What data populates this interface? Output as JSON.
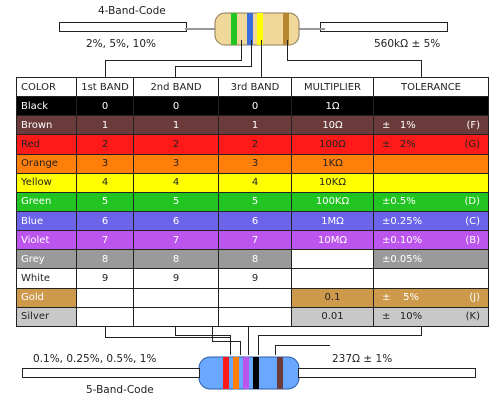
{
  "top": {
    "title": "4-Band-Code",
    "left_note": "2%, 5%, 10%",
    "right_note": "560kΩ ± 5%"
  },
  "bottom": {
    "title": "5-Band-Code",
    "left_note": "0.1%, 0.25%, 0.5%, 1%",
    "right_note": "237Ω ± 1%"
  },
  "table": {
    "headers": [
      "COLOR",
      "1st BAND",
      "2nd BAND",
      "3rd BAND",
      "MULTIPLIER",
      "TOLERANCE"
    ],
    "rows": [
      {
        "name": "Black",
        "b1": "0",
        "b2": "0",
        "b3": "0",
        "mult": "1Ω",
        "tol_val": "",
        "tol_code": "",
        "bg": "#000000",
        "fg": "#ffffff",
        "mult_bg": "#000000",
        "mult_fg": "#ffffff",
        "tol_bg": "#000000"
      },
      {
        "name": "Brown",
        "b1": "1",
        "b2": "1",
        "b3": "1",
        "mult": "10Ω",
        "tol_val": "±   1%",
        "tol_code": "(F)",
        "bg": "#6b3a3a",
        "fg": "#ffffff",
        "mult_bg": "#6b3a3a",
        "mult_fg": "#ffffff",
        "tol_bg": "#6b3a3a"
      },
      {
        "name": "Red",
        "b1": "2",
        "b2": "2",
        "b3": "2",
        "mult": "100Ω",
        "tol_val": "±   2%",
        "tol_code": "(G)",
        "bg": "#ff1a1a",
        "fg": "#222222",
        "mult_bg": "#ff1a1a",
        "mult_fg": "#222222",
        "tol_bg": "#ff1a1a"
      },
      {
        "name": "Orange",
        "b1": "3",
        "b2": "3",
        "b3": "3",
        "mult": "1KΩ",
        "tol_val": "",
        "tol_code": "",
        "bg": "#ff7f0a",
        "fg": "#222222",
        "mult_bg": "#ff7f0a",
        "mult_fg": "#222222",
        "tol_bg": "#ff7f0a"
      },
      {
        "name": "Yellow",
        "b1": "4",
        "b2": "4",
        "b3": "4",
        "mult": "10KΩ",
        "tol_val": "",
        "tol_code": "",
        "bg": "#ffff00",
        "fg": "#222222",
        "mult_bg": "#ffff00",
        "mult_fg": "#222222",
        "tol_bg": "#ffff00"
      },
      {
        "name": "Green",
        "b1": "5",
        "b2": "5",
        "b3": "5",
        "mult": "100KΩ",
        "tol_val": "±0.5%",
        "tol_code": "(D)",
        "bg": "#22c422",
        "fg": "#ffffff",
        "mult_bg": "#22c422",
        "mult_fg": "#ffffff",
        "tol_bg": "#22c422"
      },
      {
        "name": "Blue",
        "b1": "6",
        "b2": "6",
        "b3": "6",
        "mult": "1MΩ",
        "tol_val": "±0.25%",
        "tol_code": "(C)",
        "bg": "#6b64e8",
        "fg": "#ffffff",
        "mult_bg": "#6b64e8",
        "mult_fg": "#ffffff",
        "tol_bg": "#6b64e8"
      },
      {
        "name": "Violet",
        "b1": "7",
        "b2": "7",
        "b3": "7",
        "mult": "10MΩ",
        "tol_val": "±0.10%",
        "tol_code": "(B)",
        "bg": "#bb55ee",
        "fg": "#ffffff",
        "mult_bg": "#bb55ee",
        "mult_fg": "#ffffff",
        "tol_bg": "#bb55ee"
      },
      {
        "name": "Grey",
        "b1": "8",
        "b2": "8",
        "b3": "8",
        "mult": "",
        "tol_val": "±0.05%",
        "tol_code": "",
        "bg": "#9a9a9a",
        "fg": "#ffffff",
        "mult_bg": "#ffffff",
        "mult_fg": "#222222",
        "tol_bg": "#9a9a9a"
      },
      {
        "name": "White",
        "b1": "9",
        "b2": "9",
        "b3": "9",
        "mult": "",
        "tol_val": "",
        "tol_code": "",
        "bg": "#ffffff",
        "fg": "#222222",
        "mult_bg": "#ffffff",
        "mult_fg": "#222222",
        "tol_bg": "#ffffff"
      },
      {
        "name": "Gold",
        "b1": "",
        "b2": "",
        "b3": "",
        "mult": "0.1",
        "tol_val": "±    5%",
        "tol_code": "(J)",
        "bg": "#cc9a4a",
        "fg": "#ffffff",
        "mult_bg": "#cc9a4a",
        "mult_fg": "#222222",
        "tol_bg": "#cc9a4a",
        "bands_bg": "#ffffff"
      },
      {
        "name": "Silver",
        "b1": "",
        "b2": "",
        "b3": "",
        "mult": "0.01",
        "tol_val": "±   10%",
        "tol_code": "(K)",
        "bg": "#c8c8c8",
        "fg": "#222222",
        "mult_bg": "#c8c8c8",
        "mult_fg": "#222222",
        "tol_bg": "#c8c8c8",
        "bands_bg": "#ffffff"
      }
    ]
  },
  "colors": {
    "resistor_body_top": "#f0d89a",
    "resistor_body_bottom": "#6aa8ff",
    "lead": "#bbbbbb"
  }
}
